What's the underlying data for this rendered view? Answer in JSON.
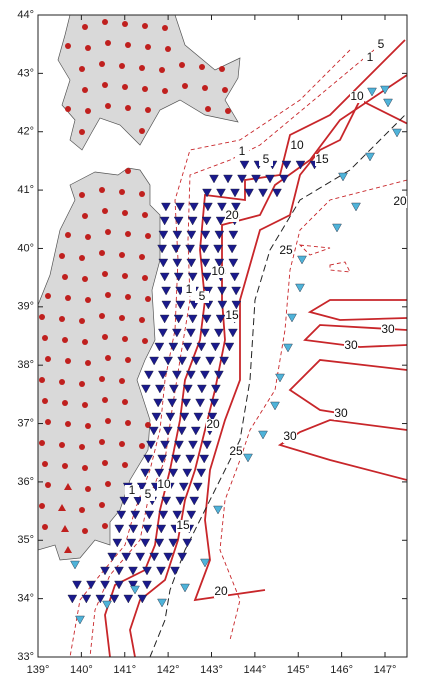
{
  "map": {
    "lon_ticks": [
      {
        "value": 139,
        "label": "139°"
      },
      {
        "value": 140,
        "label": "140°"
      },
      {
        "value": 141,
        "label": "141°"
      },
      {
        "value": 142,
        "label": "142°"
      },
      {
        "value": 143,
        "label": "143°"
      },
      {
        "value": 144,
        "label": "144°"
      },
      {
        "value": 145,
        "label": "145°"
      },
      {
        "value": 146,
        "label": "146°"
      },
      {
        "value": 147,
        "label": "147°"
      }
    ],
    "lat_ticks": [
      {
        "value": 44,
        "label": "44°"
      },
      {
        "value": 43,
        "label": "43°"
      },
      {
        "value": 42,
        "label": "42°"
      },
      {
        "value": 41,
        "label": "41°"
      },
      {
        "value": 40,
        "label": "40°"
      },
      {
        "value": 39,
        "label": "39°"
      },
      {
        "value": 38,
        "label": "38°"
      },
      {
        "value": 37,
        "label": "37°"
      },
      {
        "value": 36,
        "label": "36°"
      },
      {
        "value": 35,
        "label": "35°"
      },
      {
        "value": 34,
        "label": "34°"
      },
      {
        "value": 33,
        "label": "33°"
      }
    ],
    "contour_labels": [
      1,
      5,
      10,
      1,
      5,
      10,
      15,
      20,
      20,
      25,
      1,
      5,
      10,
      15,
      30,
      30,
      30,
      30,
      20,
      25,
      1,
      5,
      10,
      15,
      20
    ]
  }
}
